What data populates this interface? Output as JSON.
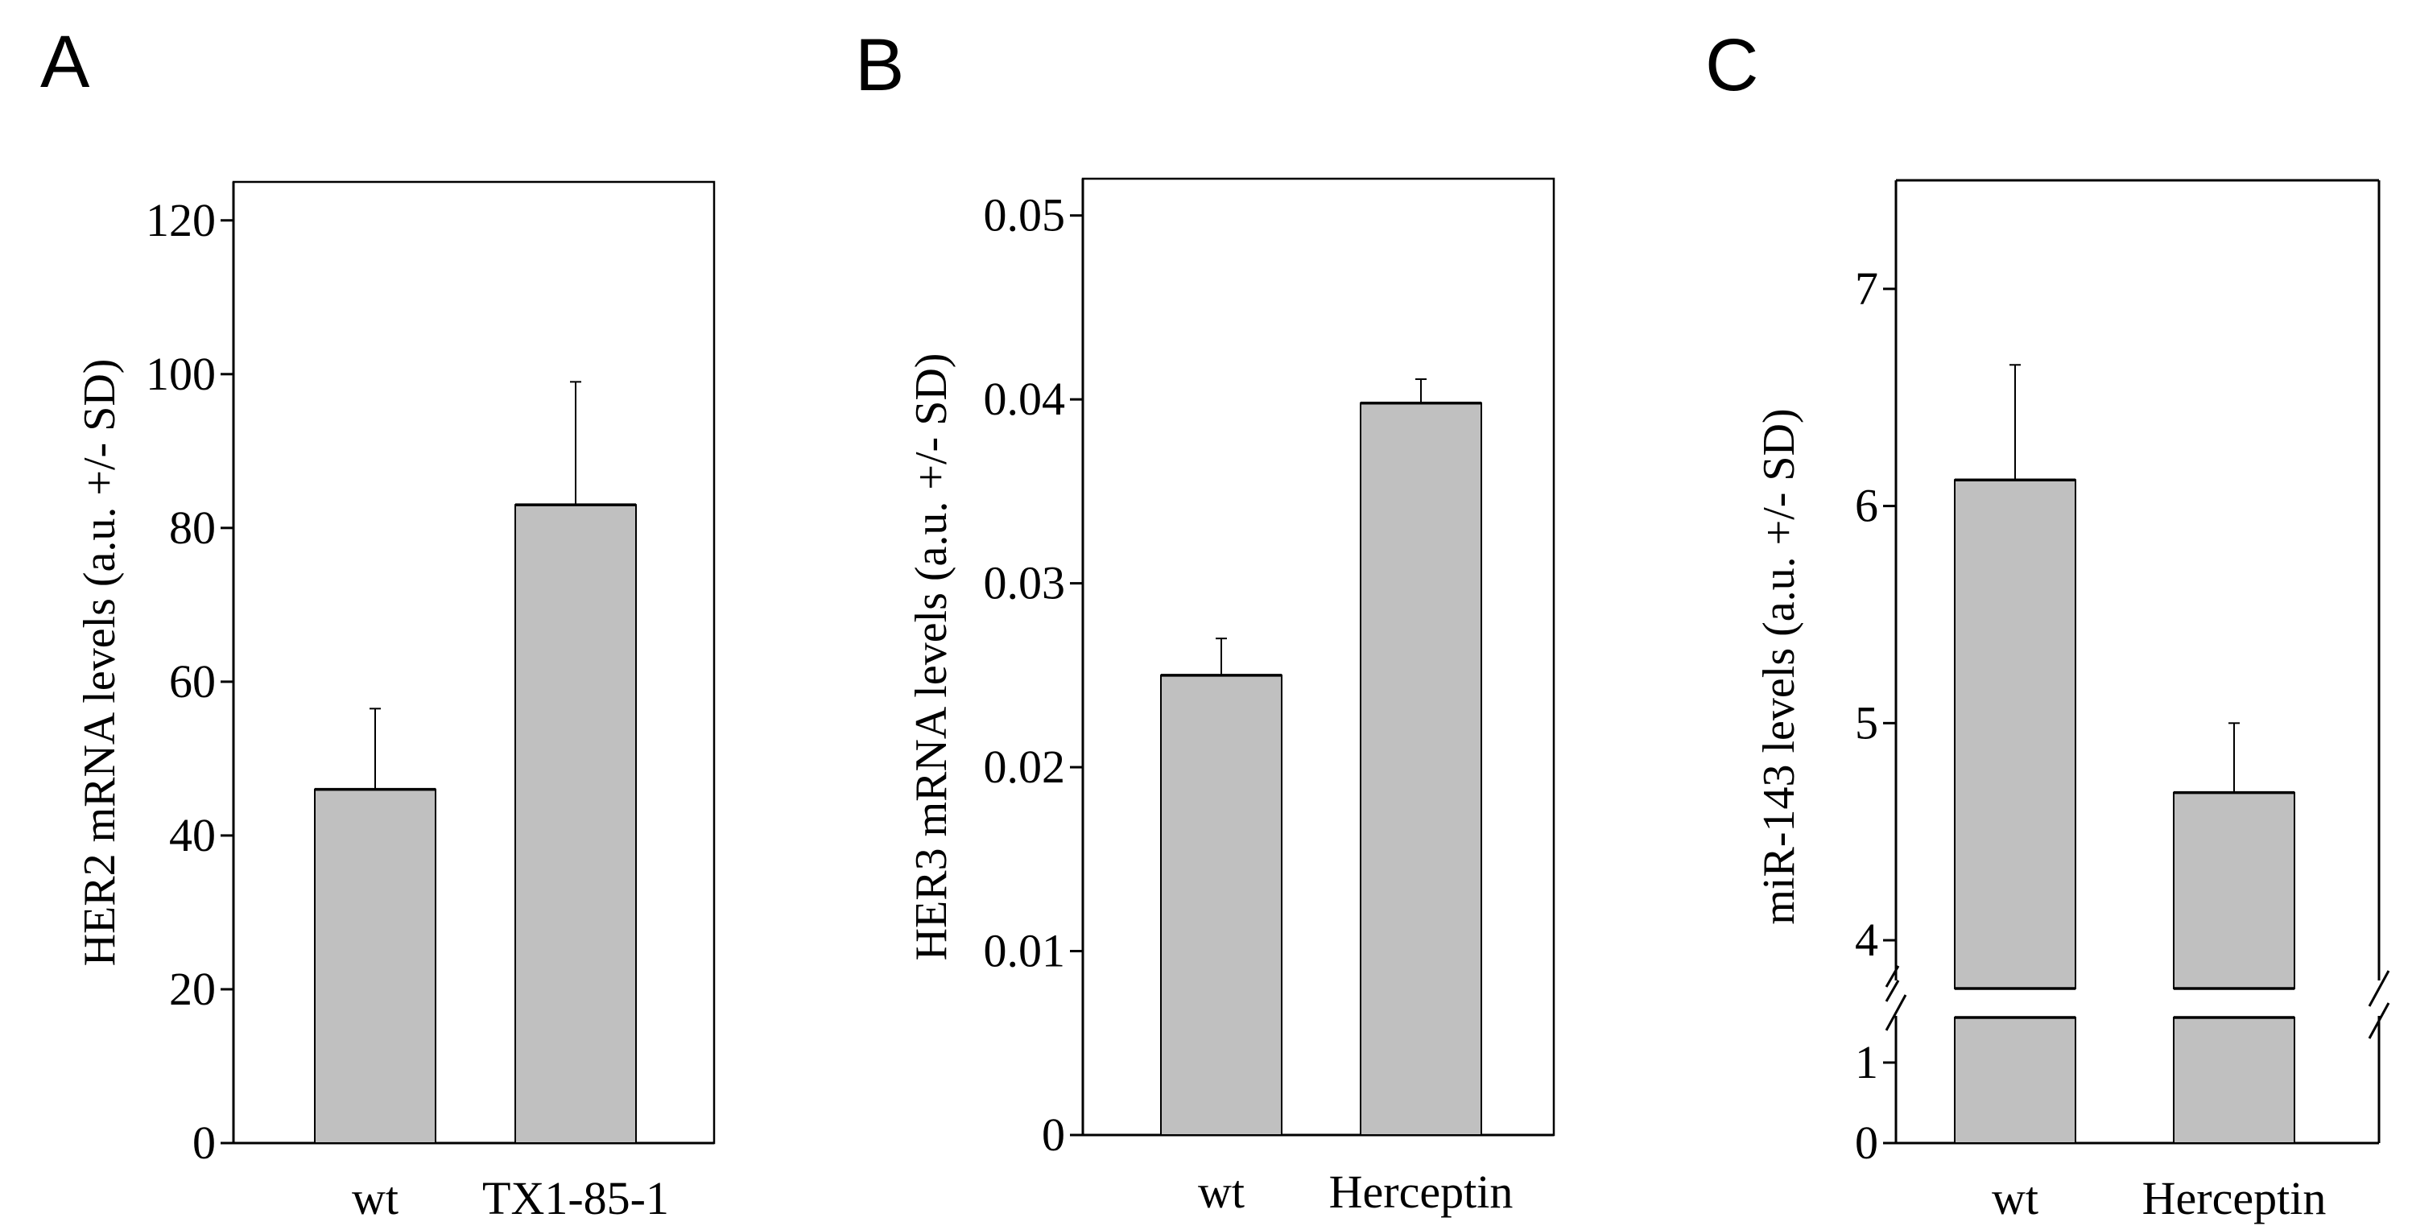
{
  "chart_data": [
    {
      "panel": "A",
      "type": "bar",
      "categories": [
        "wt",
        "TX1-85-1"
      ],
      "values": [
        46,
        83
      ],
      "errors": [
        10.5,
        16
      ],
      "ylabel": "HER2 mRNA levels (a.u. +/- SD)",
      "yticks": [
        0,
        20,
        40,
        60,
        80,
        100,
        120
      ],
      "ylim": [
        0,
        125
      ]
    },
    {
      "panel": "B",
      "type": "bar",
      "categories": [
        "wt",
        "Herceptin"
      ],
      "values": [
        0.025,
        0.0398
      ],
      "errors": [
        0.002,
        0.0013
      ],
      "ylabel": "HER3 mRNA levels (a.u. +/- SD)",
      "yticks": [
        "0",
        "0.01",
        "0.02",
        "0.03",
        "0.04",
        "0.05"
      ],
      "ylim": [
        0,
        0.052
      ]
    },
    {
      "panel": "C",
      "type": "bar",
      "categories": [
        "wt",
        "Herceptin"
      ],
      "values": [
        6.12,
        4.68
      ],
      "errors": [
        0.53,
        0.32
      ],
      "ylabel": "miR-143 levels (a.u. +/- SD)",
      "yticks_lower": [
        0,
        1
      ],
      "yticks_upper": [
        4,
        5,
        6,
        7
      ],
      "axis_break": true,
      "ylim_lower": [
        0,
        1.5
      ],
      "ylim_upper": [
        3.8,
        7.5
      ]
    }
  ]
}
